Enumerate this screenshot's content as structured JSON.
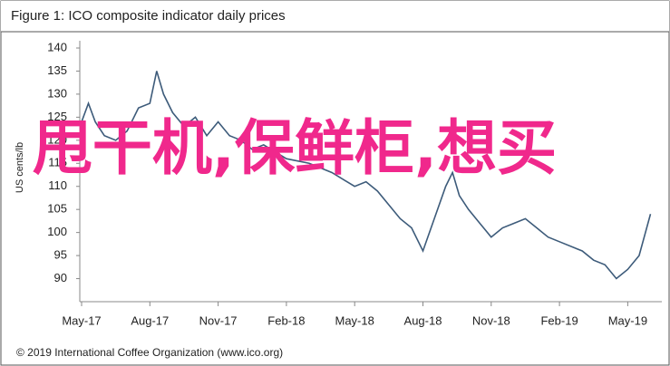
{
  "chart_data": {
    "type": "line",
    "title": "Figure 1: ICO composite indicator daily prices",
    "ylabel": "US cents/lb",
    "footer": "© 2019 International Coffee Organization (www.ico.org)",
    "overlay_text": "甩干机,保鲜柜,想买",
    "xlim": [
      0,
      25.1
    ],
    "xticks": [
      {
        "value": 0,
        "label": "May-17"
      },
      {
        "value": 3,
        "label": "Aug-17"
      },
      {
        "value": 6,
        "label": "Nov-17"
      },
      {
        "value": 9,
        "label": "Feb-18"
      },
      {
        "value": 12,
        "label": "May-18"
      },
      {
        "value": 15,
        "label": "Aug-18"
      },
      {
        "value": 18,
        "label": "Nov-18"
      },
      {
        "value": 21,
        "label": "Feb-19"
      },
      {
        "value": 24,
        "label": "May-19"
      }
    ],
    "ylim": [
      85,
      140
    ],
    "yticks": [
      90,
      95,
      100,
      105,
      110,
      115,
      120,
      125,
      130,
      135,
      140
    ],
    "series": [
      {
        "name": "ICO composite",
        "color": "#3d5b7a",
        "x": [
          0,
          0.3,
          0.6,
          1,
          1.5,
          2,
          2.5,
          3,
          3.3,
          3.6,
          4,
          4.5,
          5,
          5.5,
          6,
          6.5,
          7,
          7.5,
          8,
          9,
          10,
          11,
          12,
          12.5,
          13,
          14,
          14.5,
          15,
          15.5,
          16,
          16.3,
          16.6,
          17,
          17.5,
          18,
          18.5,
          19,
          19.5,
          20,
          20.5,
          21,
          22,
          22.5,
          23,
          23.5,
          24,
          24.5,
          25
        ],
        "values": [
          124,
          128,
          124,
          121,
          120,
          122,
          127,
          128,
          135,
          130,
          126,
          123,
          125,
          121,
          124,
          121,
          120,
          118,
          119,
          116,
          115,
          113,
          110,
          111,
          109,
          103,
          101,
          96,
          103,
          110,
          113,
          108,
          105,
          102,
          99,
          101,
          102,
          103,
          101,
          99,
          98,
          96,
          94,
          93,
          90,
          92,
          95,
          104
        ]
      }
    ]
  }
}
